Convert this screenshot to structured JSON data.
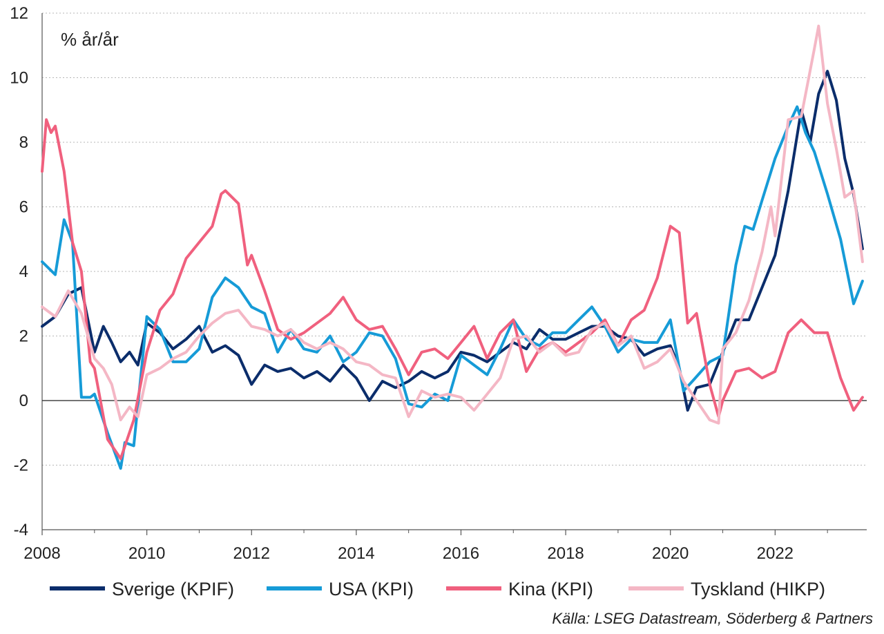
{
  "chart_data": {
    "type": "line",
    "title": "",
    "unit_label": "% år/år",
    "source": "Källa: LSEG Datastream, Söderberg & Partners",
    "xlabel": "",
    "ylabel": "",
    "ylim": [
      -4,
      12
    ],
    "xlim": [
      2008.0,
      2023.75
    ],
    "yticks": [
      -4,
      -2,
      0,
      2,
      4,
      6,
      8,
      10,
      12
    ],
    "xticks": [
      2008,
      2010,
      2012,
      2014,
      2016,
      2018,
      2020,
      2022
    ],
    "grid": "horizontal dotted",
    "legend_position": "bottom",
    "series": [
      {
        "name": "Sverige (KPIF)",
        "color": "#0b2d6b",
        "x": [
          2008.0,
          2008.25,
          2008.5,
          2008.75,
          2009.0,
          2009.17,
          2009.33,
          2009.5,
          2009.67,
          2009.83,
          2010.0,
          2010.25,
          2010.5,
          2010.75,
          2011.0,
          2011.25,
          2011.5,
          2011.75,
          2012.0,
          2012.25,
          2012.5,
          2012.75,
          2013.0,
          2013.25,
          2013.5,
          2013.75,
          2014.0,
          2014.25,
          2014.5,
          2014.75,
          2015.0,
          2015.25,
          2015.5,
          2015.75,
          2016.0,
          2016.25,
          2016.5,
          2016.75,
          2017.0,
          2017.25,
          2017.5,
          2017.75,
          2018.0,
          2018.25,
          2018.5,
          2018.75,
          2019.0,
          2019.25,
          2019.5,
          2019.75,
          2020.0,
          2020.17,
          2020.33,
          2020.5,
          2020.75,
          2021.0,
          2021.25,
          2021.5,
          2021.75,
          2022.0,
          2022.25,
          2022.5,
          2022.67,
          2022.83,
          2023.0,
          2023.17,
          2023.33,
          2023.5,
          2023.67
        ],
        "values": [
          2.3,
          2.6,
          3.3,
          3.5,
          1.5,
          2.3,
          1.8,
          1.2,
          1.5,
          1.1,
          2.4,
          2.1,
          1.6,
          1.9,
          2.3,
          1.5,
          1.7,
          1.4,
          0.5,
          1.1,
          0.9,
          1.0,
          0.7,
          0.9,
          0.6,
          1.1,
          0.7,
          0.0,
          0.6,
          0.4,
          0.6,
          0.9,
          0.7,
          0.9,
          1.5,
          1.4,
          1.2,
          1.5,
          1.8,
          1.6,
          2.2,
          1.9,
          1.9,
          2.1,
          2.3,
          2.3,
          2.0,
          1.9,
          1.4,
          1.6,
          1.7,
          1.0,
          -0.3,
          0.4,
          0.5,
          1.5,
          2.5,
          2.5,
          3.5,
          4.5,
          6.5,
          9.0,
          8.0,
          9.5,
          10.2,
          9.3,
          7.5,
          6.4,
          4.7
        ]
      },
      {
        "name": "USA (KPI)",
        "color": "#169bd7",
        "x": [
          2008.0,
          2008.25,
          2008.42,
          2008.58,
          2008.75,
          2008.92,
          2009.0,
          2009.25,
          2009.5,
          2009.58,
          2009.75,
          2010.0,
          2010.25,
          2010.5,
          2010.75,
          2011.0,
          2011.25,
          2011.5,
          2011.75,
          2012.0,
          2012.25,
          2012.5,
          2012.75,
          2013.0,
          2013.25,
          2013.5,
          2013.75,
          2014.0,
          2014.25,
          2014.5,
          2014.75,
          2015.0,
          2015.25,
          2015.5,
          2015.75,
          2016.0,
          2016.25,
          2016.5,
          2016.75,
          2017.0,
          2017.25,
          2017.5,
          2017.75,
          2018.0,
          2018.25,
          2018.5,
          2018.75,
          2019.0,
          2019.25,
          2019.5,
          2019.75,
          2020.0,
          2020.25,
          2020.42,
          2020.75,
          2021.0,
          2021.25,
          2021.42,
          2021.58,
          2021.75,
          2022.0,
          2022.25,
          2022.42,
          2022.58,
          2022.75,
          2023.0,
          2023.25,
          2023.5,
          2023.67
        ],
        "values": [
          4.3,
          3.9,
          5.6,
          4.9,
          0.1,
          0.1,
          0.2,
          -1.0,
          -2.1,
          -1.3,
          -1.4,
          2.6,
          2.2,
          1.2,
          1.2,
          1.6,
          3.2,
          3.8,
          3.5,
          2.9,
          2.7,
          1.5,
          2.2,
          1.6,
          1.5,
          2.0,
          1.2,
          1.5,
          2.1,
          2.0,
          1.3,
          -0.1,
          -0.2,
          0.2,
          0.0,
          1.4,
          1.1,
          0.8,
          1.6,
          2.5,
          1.9,
          1.7,
          2.1,
          2.1,
          2.5,
          2.9,
          2.3,
          1.5,
          1.9,
          1.8,
          1.8,
          2.5,
          0.3,
          0.6,
          1.2,
          1.4,
          4.2,
          5.4,
          5.3,
          6.2,
          7.5,
          8.5,
          9.1,
          8.3,
          7.7,
          6.4,
          5.0,
          3.0,
          3.7
        ]
      },
      {
        "name": "Kina (KPI)",
        "color": "#f0607e",
        "x": [
          2008.0,
          2008.08,
          2008.17,
          2008.25,
          2008.42,
          2008.58,
          2008.75,
          2008.92,
          2009.0,
          2009.25,
          2009.5,
          2009.75,
          2010.0,
          2010.25,
          2010.5,
          2010.75,
          2011.0,
          2011.25,
          2011.42,
          2011.5,
          2011.75,
          2011.92,
          2012.0,
          2012.25,
          2012.5,
          2012.75,
          2013.0,
          2013.25,
          2013.5,
          2013.75,
          2014.0,
          2014.25,
          2014.5,
          2014.75,
          2015.0,
          2015.25,
          2015.5,
          2015.75,
          2016.0,
          2016.25,
          2016.5,
          2016.75,
          2017.0,
          2017.25,
          2017.5,
          2017.75,
          2018.0,
          2018.25,
          2018.5,
          2018.75,
          2019.0,
          2019.25,
          2019.5,
          2019.75,
          2020.0,
          2020.17,
          2020.33,
          2020.5,
          2020.75,
          2020.92,
          2021.0,
          2021.25,
          2021.5,
          2021.75,
          2022.0,
          2022.25,
          2022.5,
          2022.75,
          2023.0,
          2023.25,
          2023.5,
          2023.67
        ],
        "values": [
          7.1,
          8.7,
          8.3,
          8.5,
          7.1,
          4.9,
          4.0,
          1.2,
          1.0,
          -1.2,
          -1.8,
          -0.6,
          1.5,
          2.8,
          3.3,
          4.4,
          4.9,
          5.4,
          6.4,
          6.5,
          6.1,
          4.2,
          4.5,
          3.4,
          2.2,
          1.9,
          2.1,
          2.4,
          2.7,
          3.2,
          2.5,
          2.2,
          2.3,
          1.6,
          0.8,
          1.5,
          1.6,
          1.3,
          1.8,
          2.3,
          1.3,
          2.1,
          2.5,
          0.9,
          1.6,
          1.8,
          1.5,
          1.8,
          2.1,
          2.5,
          1.7,
          2.5,
          2.8,
          3.8,
          5.4,
          5.2,
          2.4,
          2.7,
          0.5,
          -0.5,
          0.0,
          0.9,
          1.0,
          0.7,
          0.9,
          2.1,
          2.5,
          2.1,
          2.1,
          0.7,
          -0.3,
          0.1
        ]
      },
      {
        "name": "Tyskland (HIKP)",
        "color": "#f4b7c5",
        "x": [
          2008.0,
          2008.25,
          2008.5,
          2008.75,
          2009.0,
          2009.17,
          2009.33,
          2009.5,
          2009.67,
          2009.83,
          2010.0,
          2010.25,
          2010.5,
          2010.75,
          2011.0,
          2011.25,
          2011.5,
          2011.75,
          2012.0,
          2012.25,
          2012.5,
          2012.75,
          2013.0,
          2013.25,
          2013.5,
          2013.75,
          2014.0,
          2014.25,
          2014.5,
          2014.75,
          2015.0,
          2015.25,
          2015.5,
          2015.75,
          2016.0,
          2016.25,
          2016.5,
          2016.75,
          2017.0,
          2017.25,
          2017.5,
          2017.75,
          2018.0,
          2018.25,
          2018.5,
          2018.75,
          2019.0,
          2019.25,
          2019.5,
          2019.75,
          2020.0,
          2020.25,
          2020.5,
          2020.75,
          2020.92,
          2021.0,
          2021.25,
          2021.5,
          2021.75,
          2021.92,
          2022.0,
          2022.25,
          2022.5,
          2022.75,
          2022.83,
          2023.0,
          2023.17,
          2023.33,
          2023.5,
          2023.67
        ],
        "values": [
          2.9,
          2.6,
          3.4,
          2.7,
          1.3,
          1.0,
          0.5,
          -0.6,
          -0.2,
          -0.5,
          0.8,
          1.0,
          1.3,
          1.5,
          2.0,
          2.4,
          2.7,
          2.8,
          2.3,
          2.2,
          2.0,
          2.2,
          1.8,
          1.6,
          1.8,
          1.6,
          1.2,
          1.1,
          0.8,
          0.7,
          -0.5,
          0.3,
          0.1,
          0.2,
          0.1,
          -0.3,
          0.2,
          0.7,
          1.9,
          2.0,
          1.5,
          1.8,
          1.4,
          1.5,
          2.2,
          2.4,
          1.7,
          2.0,
          1.0,
          1.2,
          1.6,
          0.6,
          0.0,
          -0.6,
          -0.7,
          1.6,
          2.1,
          3.1,
          4.6,
          6.0,
          5.1,
          8.7,
          8.8,
          10.9,
          11.6,
          9.2,
          7.8,
          6.3,
          6.5,
          4.3
        ]
      }
    ]
  }
}
